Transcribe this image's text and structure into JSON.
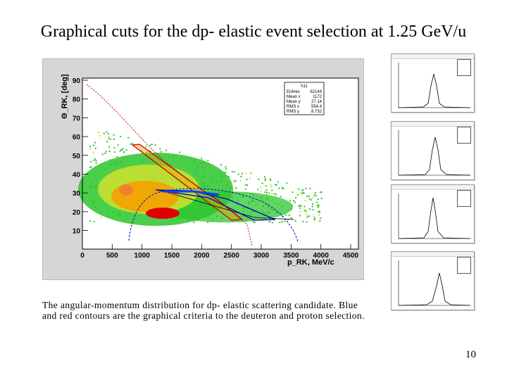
{
  "title": "Graphical cuts for the dp- elastic event selection at 1.25 GeV/u",
  "caption": "The angular-momentum distribution for dp- elastic scattering candidate. Blue and red contours are the graphical criteria to the deuteron and proton selection.",
  "page_number": "10",
  "main_plot": {
    "x_axis_label": "p_RK, MeV/c",
    "y_axis_label": "Θ_RK, [deg]",
    "x_ticks": [
      "0",
      "500",
      "1000",
      "1500",
      "2000",
      "2500",
      "3000",
      "3500",
      "4000",
      "4500"
    ],
    "y_ticks": [
      "10",
      "20",
      "30",
      "40",
      "50",
      "60",
      "70",
      "80",
      "90"
    ],
    "stats_box": {
      "name": "h11",
      "rows": [
        {
          "label": "Entries",
          "value": "62144"
        },
        {
          "label": "Mean x",
          "value": "1172"
        },
        {
          "label": "Mean y",
          "value": "27.14"
        },
        {
          "label": "RMS x",
          "value": "554.4"
        },
        {
          "label": "RMS y",
          "value": "8.732"
        }
      ]
    },
    "colors": {
      "high": "#e00000",
      "mid": "#f6a000",
      "low": "#2cc52c",
      "edge": "#1e8f1e",
      "proton_cut": "#cc0000",
      "deuteron_cut": "#0000cc"
    }
  },
  "thumbnails": [
    {
      "id": "thumb-1"
    },
    {
      "id": "thumb-2"
    },
    {
      "id": "thumb-3"
    },
    {
      "id": "thumb-4"
    }
  ]
}
